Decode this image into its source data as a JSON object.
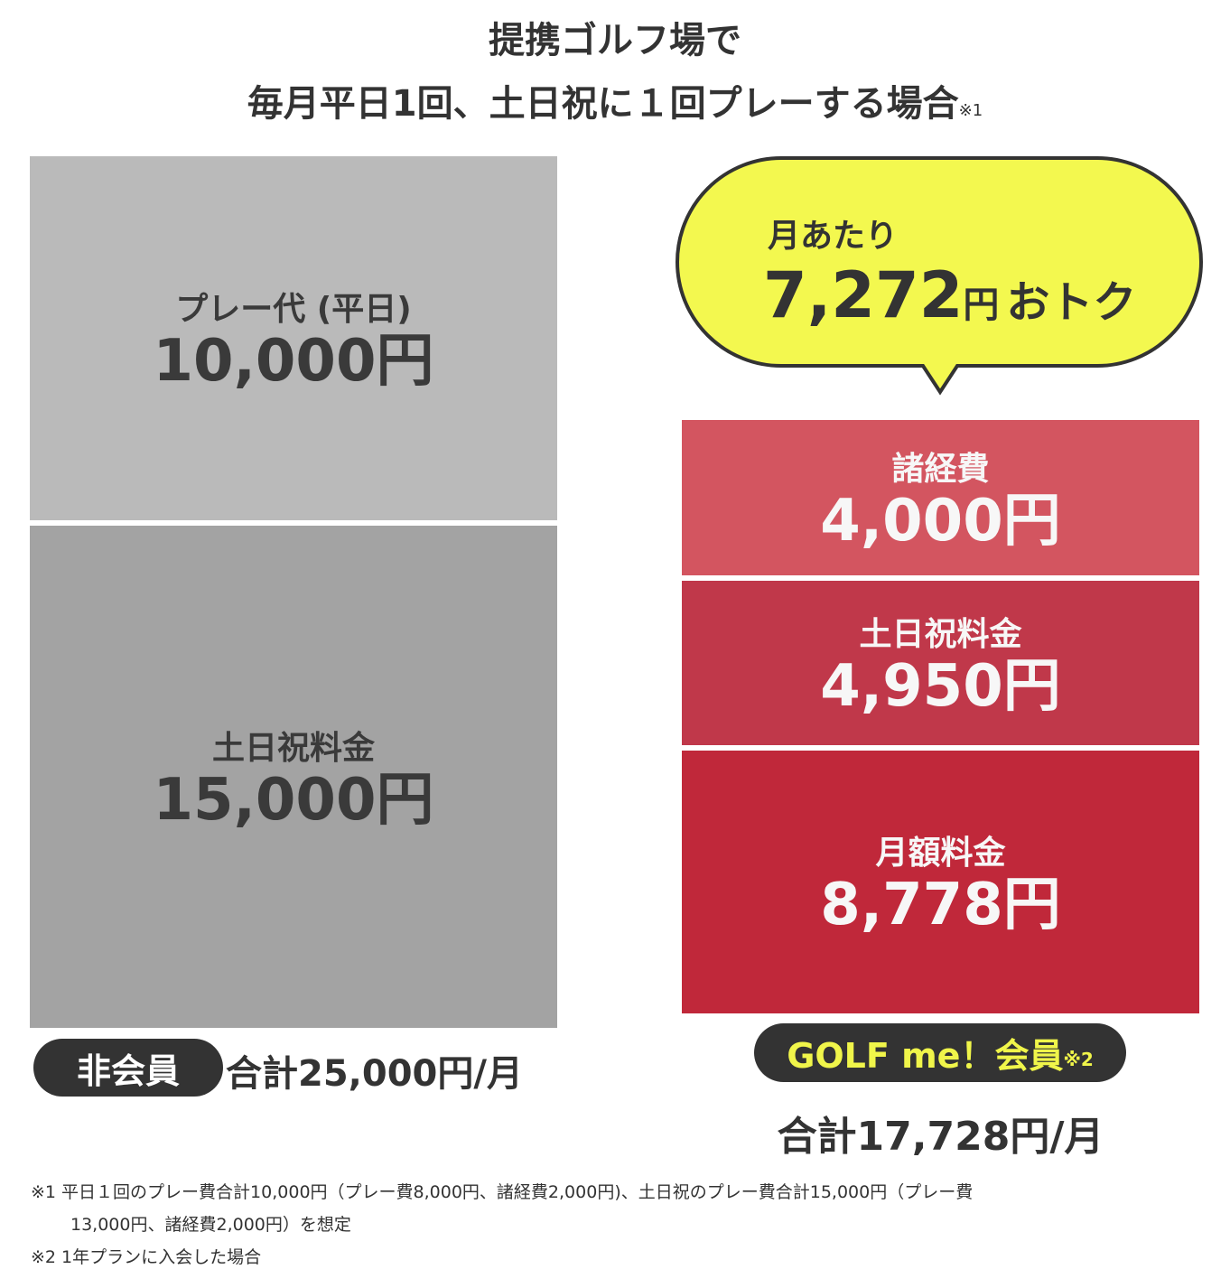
{
  "title": {
    "line1": "提携ゴルフ場で",
    "line2": "毎月平日1回、土日祝に１回プレーする場合",
    "note_mark": "※1"
  },
  "chart_data": {
    "type": "bar",
    "stacked": true,
    "categories": [
      "非会員",
      "GOLF me！会員"
    ],
    "unit": "円",
    "series": [
      {
        "bar": "非会員",
        "segments": [
          {
            "label": "プレー代 (平日)",
            "value": 10000,
            "display": "10,000",
            "color": "#bababa"
          },
          {
            "label": "土日祝料金",
            "value": 15000,
            "display": "15,000",
            "color": "#a3a3a3"
          }
        ]
      },
      {
        "bar": "GOLF me！会員",
        "segments": [
          {
            "label": "諸経費",
            "value": 4000,
            "display": "4,000",
            "color": "#d35560"
          },
          {
            "label": "土日祝料金",
            "value": 4950,
            "display": "4,950",
            "color": "#c0384a"
          },
          {
            "label": "月額料金",
            "value": 8778,
            "display": "8,778",
            "color": "#c0283a"
          }
        ]
      }
    ]
  },
  "left": {
    "badge": "非会員",
    "total": "合計25,000円/月"
  },
  "right": {
    "badge": "GOLF me！会員",
    "badge_mark": "※2",
    "total": "合計17,728円/月",
    "badge_text_color": "#f0f54a"
  },
  "bubble": {
    "line1": "月あたり",
    "amount": "7,272",
    "unit": "円",
    "suffix": "おトク",
    "color": "#f3f84f"
  },
  "footnotes": {
    "note1_line1": "※1 平日１回のプレー費合計10,000円（プレー費8,000円、諸経費2,000円)、土日祝のプレー費合計15,000円（プレー費",
    "note1_line2": "13,000円、諸経費2,000円）を想定",
    "note2": "※2 1年プランに入会した場合"
  }
}
